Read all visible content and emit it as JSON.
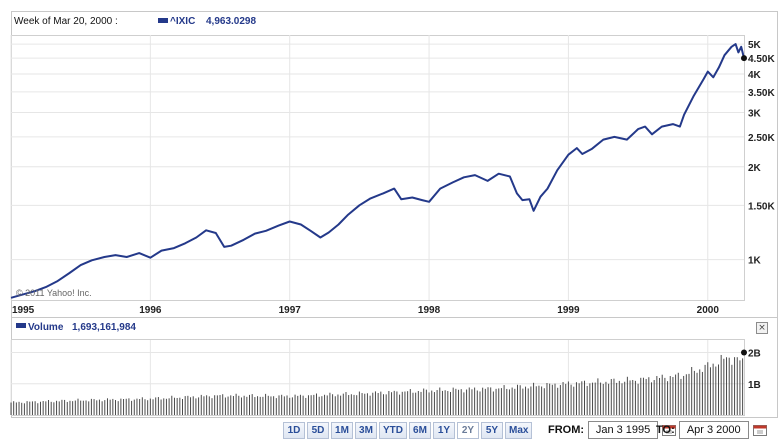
{
  "header": {
    "period": "Week of Mar 20, 2000 :",
    "symbol": "^IXIC",
    "last_value": "4,963.0298"
  },
  "watermark": "© 2011 Yahoo! Inc.",
  "volume_header": {
    "label": "Volume",
    "value": "1,693,161,984"
  },
  "range_buttons": [
    "1D",
    "5D",
    "1M",
    "3M",
    "YTD",
    "6M",
    "1Y",
    "2Y",
    "5Y",
    "Max"
  ],
  "active_range": "2Y",
  "from_label": "FROM:",
  "from_value": "Jan 3 1995",
  "to_label": "TO:",
  "to_value": "Apr 3 2000",
  "close_glyph": "×",
  "colors": {
    "line": "#24398a",
    "grid": "#e6e6e6",
    "volume_bar": "#4a4a4a",
    "accent": "#2a4e99"
  },
  "chart_data": [
    {
      "type": "line",
      "title": "",
      "series_label": "^IXIC",
      "y_scale": "log",
      "ylim": [
        740,
        5350
      ],
      "xlim": [
        1995.0,
        2000.26
      ],
      "x_ticks": [
        {
          "value": 1995,
          "label": "1995"
        },
        {
          "value": 1996,
          "label": "1996"
        },
        {
          "value": 1997,
          "label": "1997"
        },
        {
          "value": 1998,
          "label": "1998"
        },
        {
          "value": 1999,
          "label": "1999"
        },
        {
          "value": 2000,
          "label": "2000"
        }
      ],
      "y_ticks": [
        {
          "value": 1000,
          "label": "1K"
        },
        {
          "value": 1500,
          "label": "1.50K"
        },
        {
          "value": 2000,
          "label": "2K"
        },
        {
          "value": 2500,
          "label": "2.50K"
        },
        {
          "value": 3000,
          "label": "3K"
        },
        {
          "value": 3500,
          "label": "3.50K"
        },
        {
          "value": 4000,
          "label": "4K"
        },
        {
          "value": 4500,
          "label": "4.50K"
        },
        {
          "value": 5000,
          "label": "5K"
        }
      ],
      "grid": true,
      "points": [
        [
          1995.0,
          752
        ],
        [
          1995.08,
          770
        ],
        [
          1995.17,
          790
        ],
        [
          1995.25,
          815
        ],
        [
          1995.33,
          850
        ],
        [
          1995.42,
          905
        ],
        [
          1995.5,
          960
        ],
        [
          1995.58,
          995
        ],
        [
          1995.67,
          1020
        ],
        [
          1995.75,
          1035
        ],
        [
          1995.83,
          1020
        ],
        [
          1995.92,
          1050
        ],
        [
          1996.0,
          1015
        ],
        [
          1996.08,
          1070
        ],
        [
          1996.17,
          1090
        ],
        [
          1996.25,
          1130
        ],
        [
          1996.33,
          1180
        ],
        [
          1996.4,
          1245
        ],
        [
          1996.47,
          1220
        ],
        [
          1996.53,
          1100
        ],
        [
          1996.58,
          1110
        ],
        [
          1996.67,
          1160
        ],
        [
          1996.75,
          1215
        ],
        [
          1996.83,
          1240
        ],
        [
          1996.92,
          1290
        ],
        [
          1997.0,
          1330
        ],
        [
          1997.08,
          1300
        ],
        [
          1997.15,
          1240
        ],
        [
          1997.22,
          1180
        ],
        [
          1997.28,
          1225
        ],
        [
          1997.35,
          1300
        ],
        [
          1997.42,
          1400
        ],
        [
          1997.5,
          1500
        ],
        [
          1997.58,
          1580
        ],
        [
          1997.67,
          1640
        ],
        [
          1997.75,
          1700
        ],
        [
          1997.8,
          1570
        ],
        [
          1997.88,
          1590
        ],
        [
          1997.95,
          1560
        ],
        [
          1998.0,
          1540
        ],
        [
          1998.08,
          1700
        ],
        [
          1998.17,
          1780
        ],
        [
          1998.25,
          1850
        ],
        [
          1998.33,
          1880
        ],
        [
          1998.42,
          1800
        ],
        [
          1998.5,
          1900
        ],
        [
          1998.58,
          1860
        ],
        [
          1998.63,
          1640
        ],
        [
          1998.67,
          1560
        ],
        [
          1998.72,
          1570
        ],
        [
          1998.75,
          1440
        ],
        [
          1998.8,
          1600
        ],
        [
          1998.85,
          1700
        ],
        [
          1998.92,
          1950
        ],
        [
          1999.0,
          2190
        ],
        [
          1999.06,
          2300
        ],
        [
          1999.1,
          2200
        ],
        [
          1999.17,
          2290
        ],
        [
          1999.25,
          2450
        ],
        [
          1999.33,
          2500
        ],
        [
          1999.42,
          2450
        ],
        [
          1999.5,
          2650
        ],
        [
          1999.55,
          2700
        ],
        [
          1999.6,
          2550
        ],
        [
          1999.67,
          2700
        ],
        [
          1999.75,
          2750
        ],
        [
          1999.8,
          2700
        ],
        [
          1999.83,
          2950
        ],
        [
          1999.9,
          3400
        ],
        [
          1999.97,
          3850
        ],
        [
          2000.0,
          4070
        ],
        [
          2000.04,
          3900
        ],
        [
          2000.08,
          4200
        ],
        [
          2000.12,
          4600
        ],
        [
          2000.17,
          4900
        ],
        [
          2000.2,
          5000
        ],
        [
          2000.22,
          4700
        ],
        [
          2000.24,
          4900
        ],
        [
          2000.26,
          4500
        ]
      ]
    },
    {
      "type": "bar",
      "title": "",
      "series_label": "Volume",
      "ylim": [
        0,
        2400000000
      ],
      "xlim": [
        1995.0,
        2000.26
      ],
      "y_ticks": [
        {
          "value": 1000000000,
          "label": "1B"
        },
        {
          "value": 2000000000,
          "label": "2B"
        }
      ],
      "knots": [
        [
          1995.0,
          0.4
        ],
        [
          1995.5,
          0.47
        ],
        [
          1996.0,
          0.52
        ],
        [
          1996.5,
          0.62
        ],
        [
          1997.0,
          0.6
        ],
        [
          1997.5,
          0.68
        ],
        [
          1998.0,
          0.78
        ],
        [
          1998.5,
          0.85
        ],
        [
          1999.0,
          1.0
        ],
        [
          1999.5,
          1.12
        ],
        [
          1999.8,
          1.25
        ],
        [
          2000.0,
          1.55
        ],
        [
          2000.15,
          1.85
        ],
        [
          2000.26,
          1.69
        ]
      ],
      "knots_unit": "billions of shares"
    }
  ]
}
